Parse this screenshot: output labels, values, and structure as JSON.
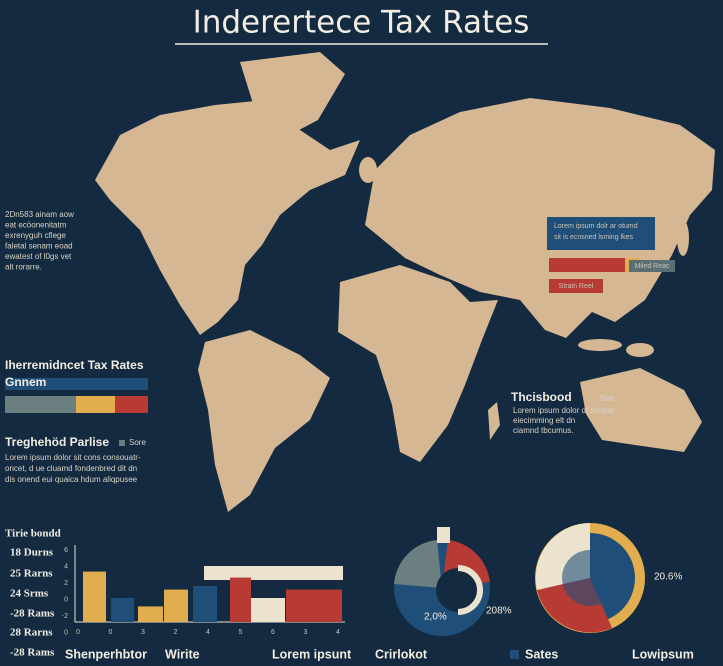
{
  "title": "Inderertece Tax Rates",
  "left_note": {
    "lines": [
      "2Dn583 ainam aow",
      "eat ecöonenitatm",
      "exrenyguh cflege",
      "faletal senam eoad",
      "ewatest of l0gs vet",
      "alt rorarre."
    ]
  },
  "legend_panel": {
    "title": "Iherremidncet Tax Rates",
    "subtitle": "Gnnem",
    "label": "Treghehöd Parlise",
    "key": "Sore",
    "lines": [
      "Lorem ipsum dolor sit cons consouatr-",
      "oncet, d ue cluamd fondenbred dit dn",
      "dis onend eui quaica hdum aliqpusee"
    ]
  },
  "map_callout": {
    "lines": [
      "Lorem ipsum dolr ar otumd",
      "sit is ecnsned lsming lkes"
    ],
    "tag": "Miled Reac",
    "badge": "Strain Reel"
  },
  "side_note": {
    "title": "Thcisbood",
    "key": "Sne",
    "lines": [
      "Lorem ipsum dolor dt sorstsr",
      "eiecimming elt dn",
      "ciamnd tbcumus."
    ]
  },
  "bar_chart": {
    "title": "Tirie bondd",
    "row_labels": [
      "18 Durns",
      "25 Rarns",
      "24 Srms",
      "-28 Rams",
      "28 Rarns",
      "-28 Rams"
    ],
    "axis_labels": [
      "6",
      "4",
      "2",
      "0",
      "-2",
      "0"
    ],
    "x_labels": [
      "0",
      "0",
      "3",
      "2",
      "4",
      "5",
      "6",
      "3",
      "4"
    ],
    "values": [
      4.2,
      2,
      1.3,
      2.7,
      3,
      3.7,
      2,
      2.7
    ],
    "colors": [
      "#e2ad4e",
      "#1f4e79",
      "#e2ad4e",
      "#e2ad4e",
      "#1f4e79",
      "#b83a35",
      "#ece3cf",
      "#b83a35"
    ]
  },
  "donut_labels": [
    "2,0%",
    "208%",
    "20.6%"
  ],
  "footer": [
    "Shenperhbtor",
    "Wirite",
    "Lorem ipsunt",
    "Crirlokot",
    "Sates",
    "Lowipsum"
  ]
}
